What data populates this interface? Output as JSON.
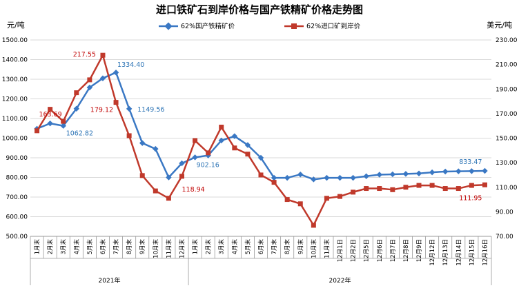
{
  "chart_data": {
    "type": "line",
    "title": "进口铁矿石到岸价格与国产铁精矿价格走势图",
    "ylabel_left": "元/吨",
    "ylabel_right": "美元/吨",
    "ylim_left": [
      500,
      1500
    ],
    "ylim_right": [
      70,
      230
    ],
    "yticks_left": [
      "500.00",
      "600.00",
      "700.00",
      "800.00",
      "900.00",
      "1000.00",
      "1100.00",
      "1200.00",
      "1300.00",
      "1400.00",
      "1500.00"
    ],
    "yticks_right": [
      "70.00",
      "90.00",
      "110.00",
      "130.00",
      "150.00",
      "170.00",
      "190.00",
      "210.00",
      "230.00"
    ],
    "categories": [
      "1月末",
      "2月末",
      "3月末",
      "4月末",
      "5月末",
      "6月末",
      "7月末",
      "8月末",
      "9月末",
      "10月末",
      "11月末",
      "12月末",
      "1月末",
      "2月末",
      "3月末",
      "4月末",
      "5月末",
      "6月末",
      "7月末",
      "8月末",
      "9月末",
      "10月末",
      "11月末",
      "12月1日",
      "12月2日",
      "12月5日",
      "12月6日",
      "12月7日",
      "12月8日",
      "12月9日",
      "12月12日",
      "12月13日",
      "12月14日",
      "12月15日",
      "12月16日"
    ],
    "year_groups": [
      {
        "label": "2021年",
        "count": 12
      },
      {
        "label": "2022年",
        "count": 23
      }
    ],
    "series": [
      {
        "name": "62%国产铁精矿价",
        "axis": "left",
        "color": "#3A78C4",
        "marker": "diamond",
        "values": [
          1048,
          1075,
          1062.82,
          1150,
          1258,
          1305,
          1334.4,
          1149.56,
          975,
          945,
          800,
          872,
          902.16,
          912,
          988,
          1010,
          965,
          900,
          798,
          798,
          815,
          790,
          798,
          798,
          798,
          806,
          814,
          816,
          818,
          820,
          826,
          830,
          831,
          832,
          833.47
        ],
        "labels": [
          {
            "index": 2,
            "text": "1062.82"
          },
          {
            "index": 6,
            "text": "1334.40"
          },
          {
            "index": 7,
            "text": "1149.56"
          },
          {
            "index": 12,
            "text": "902.16"
          },
          {
            "index": 34,
            "text": "833.47"
          }
        ]
      },
      {
        "name": "62%进口矿到岸价",
        "axis": "right",
        "color": "#C0392B",
        "marker": "square",
        "values": [
          156,
          173.5,
          163.69,
          187,
          197.5,
          217.55,
          179.12,
          152,
          119.5,
          107,
          101,
          118.94,
          148,
          138,
          159,
          142,
          137,
          120,
          114,
          100,
          96.5,
          79,
          101,
          102.5,
          106,
          109,
          109,
          108,
          110,
          111.5,
          111.5,
          109,
          109,
          111.5,
          111.95
        ],
        "labels": [
          {
            "index": 2,
            "text": "163.69"
          },
          {
            "index": 5,
            "text": "217.55"
          },
          {
            "index": 6,
            "text": "179.12"
          },
          {
            "index": 11,
            "text": "118.94"
          },
          {
            "index": 34,
            "text": "111.95"
          }
        ]
      }
    ],
    "grid": true,
    "legend": "top-center"
  }
}
